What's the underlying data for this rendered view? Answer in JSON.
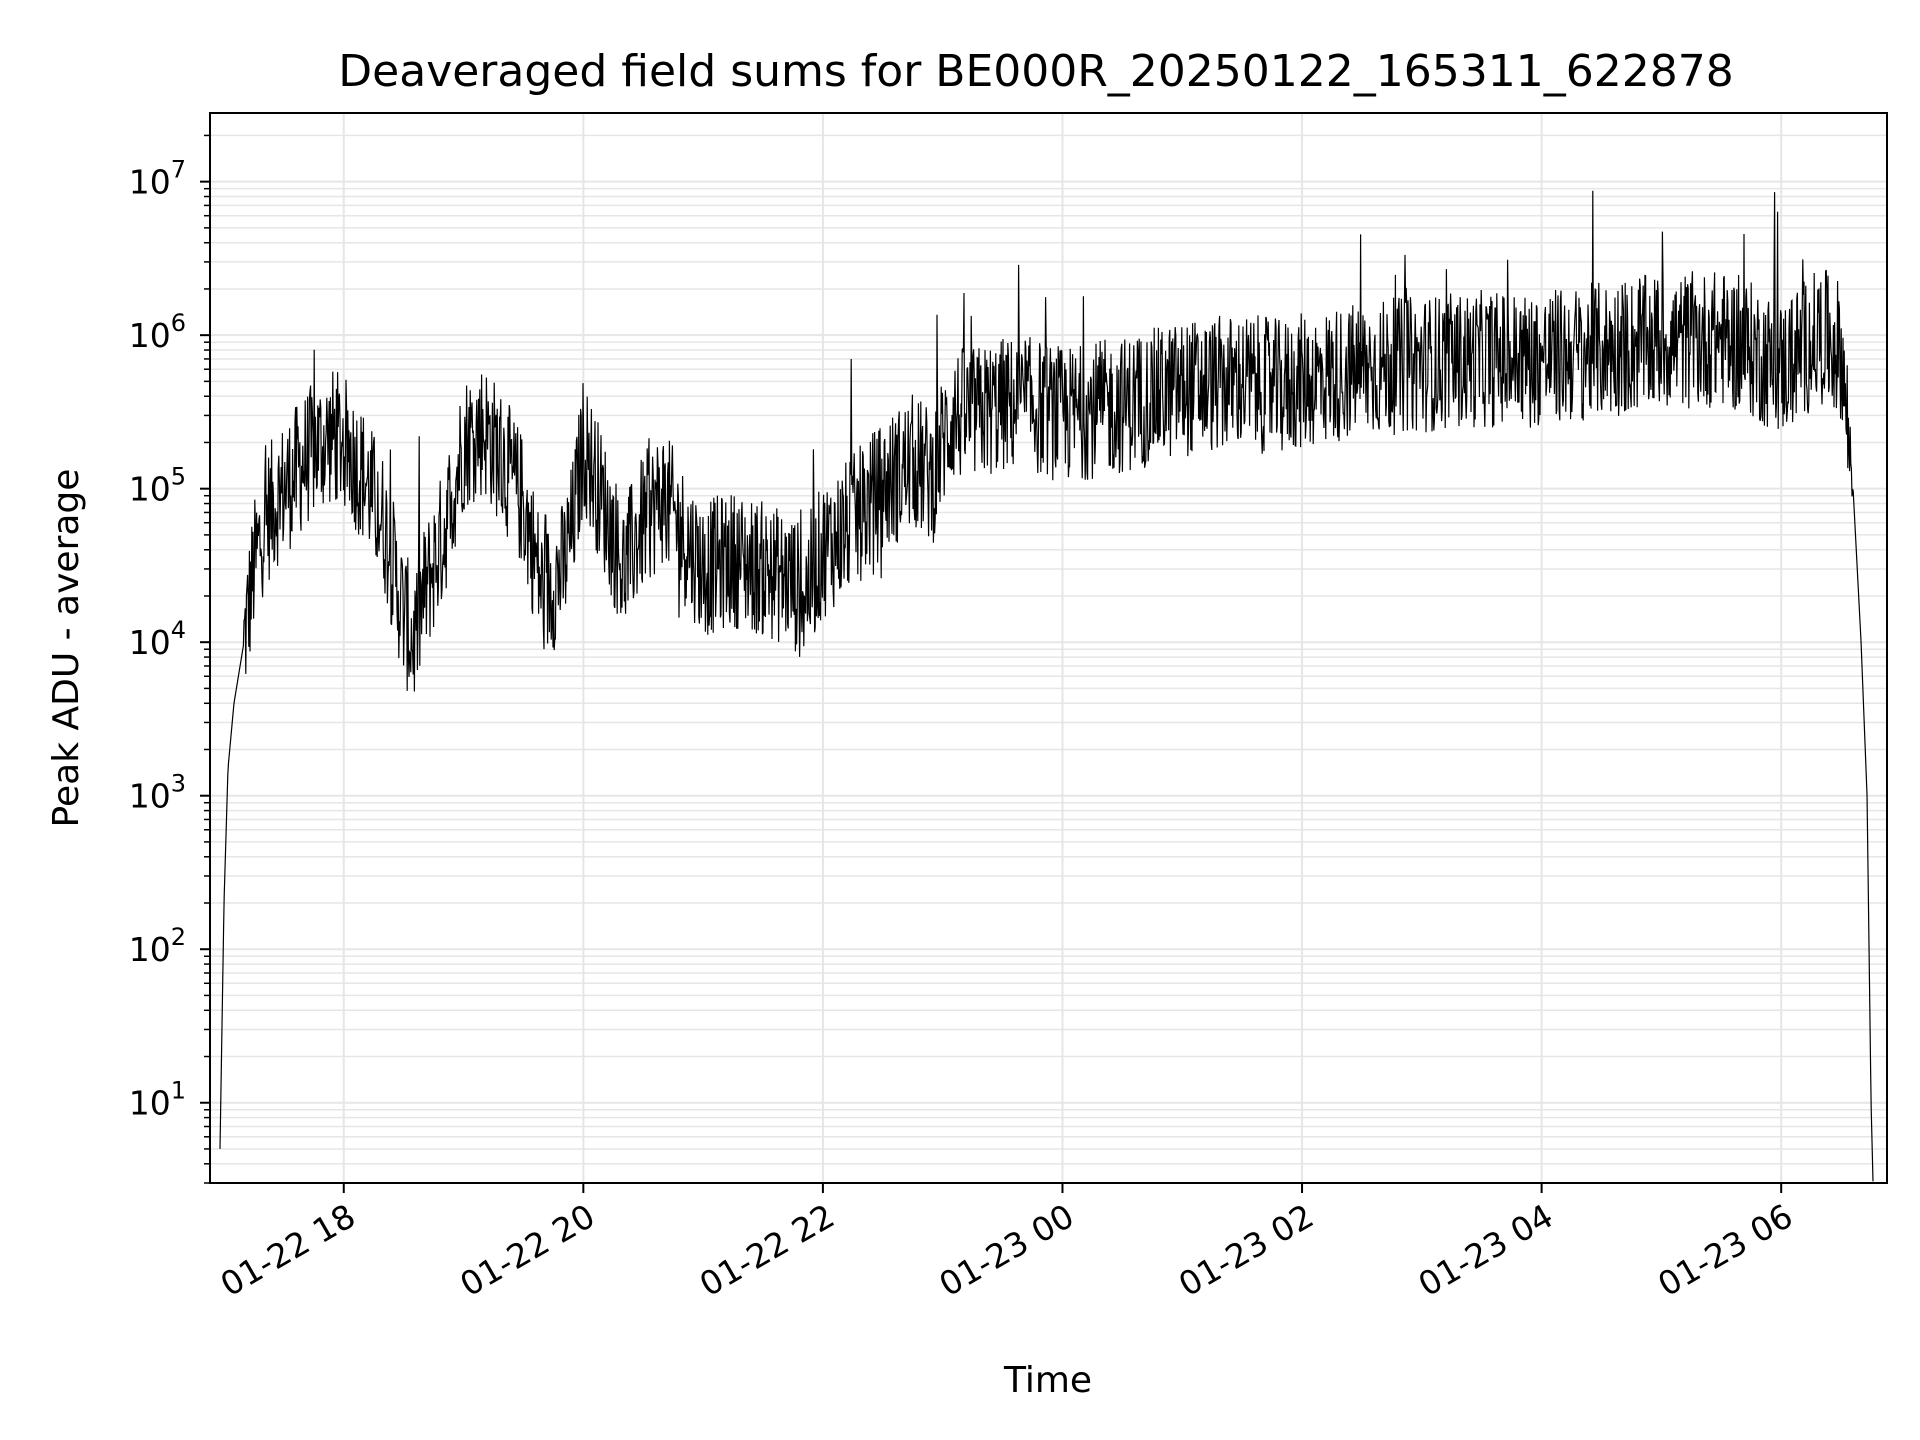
{
  "chart_data": {
    "type": "line",
    "title": "Deaveraged field sums for BE000R_20250122_165311_622878",
    "xlabel": "Time",
    "ylabel": "Peak ADU - average",
    "yscale": "log",
    "ylim": [
      3,
      28000000
    ],
    "xlim": [
      "2025-01-22 16:53",
      "2025-01-23 06:53"
    ],
    "grid": true,
    "line_color": "#000000",
    "grid_color": "#e6e6e6",
    "x_ticks": [
      {
        "t": "2025-01-22 18:00",
        "label": "01-22 18"
      },
      {
        "t": "2025-01-22 20:00",
        "label": "01-22 20"
      },
      {
        "t": "2025-01-22 22:00",
        "label": "01-22 22"
      },
      {
        "t": "2025-01-23 00:00",
        "label": "01-23 00"
      },
      {
        "t": "2025-01-23 02:00",
        "label": "01-23 02"
      },
      {
        "t": "2025-01-23 04:00",
        "label": "01-23 04"
      },
      {
        "t": "2025-01-23 06:00",
        "label": "01-23 06"
      }
    ],
    "y_ticks": [
      {
        "value": 10,
        "base": "10",
        "exp": "1"
      },
      {
        "value": 100,
        "base": "10",
        "exp": "2"
      },
      {
        "value": 1000,
        "base": "10",
        "exp": "3"
      },
      {
        "value": 10000,
        "base": "10",
        "exp": "4"
      },
      {
        "value": 100000,
        "base": "10",
        "exp": "5"
      },
      {
        "value": 1000000,
        "base": "10",
        "exp": "6"
      },
      {
        "value": 10000000,
        "base": "10",
        "exp": "7"
      }
    ],
    "series": [
      {
        "x": [
          "2025-01-22 16:58",
          "2025-01-22 17:00",
          "2025-01-22 17:02",
          "2025-01-22 17:05",
          "2025-01-22 17:10",
          "2025-01-22 17:15",
          "2025-01-22 17:20",
          "2025-01-22 17:25",
          "2025-01-22 17:30",
          "2025-01-22 17:35",
          "2025-01-22 17:40",
          "2025-01-22 17:45",
          "2025-01-22 17:50",
          "2025-01-22 17:55",
          "2025-01-22 18:00",
          "2025-01-22 18:10",
          "2025-01-22 18:20",
          "2025-01-22 18:30",
          "2025-01-22 18:35",
          "2025-01-22 18:40",
          "2025-01-22 18:50",
          "2025-01-22 19:00",
          "2025-01-22 19:10",
          "2025-01-22 19:20",
          "2025-01-22 19:30",
          "2025-01-22 19:40",
          "2025-01-22 19:50",
          "2025-01-22 19:55",
          "2025-01-22 20:00",
          "2025-01-22 20:10",
          "2025-01-22 20:20",
          "2025-01-22 20:30",
          "2025-01-22 20:40",
          "2025-01-22 20:50",
          "2025-01-22 21:00",
          "2025-01-22 21:15",
          "2025-01-22 21:30",
          "2025-01-22 21:45",
          "2025-01-22 21:50",
          "2025-01-22 22:00",
          "2025-01-22 22:15",
          "2025-01-22 22:30",
          "2025-01-22 22:45",
          "2025-01-22 22:55",
          "2025-01-22 23:00",
          "2025-01-22 23:05",
          "2025-01-22 23:15",
          "2025-01-22 23:30",
          "2025-01-22 23:45",
          "2025-01-23 00:00",
          "2025-01-23 00:30",
          "2025-01-23 01:00",
          "2025-01-23 01:30",
          "2025-01-23 01:50",
          "2025-01-23 02:00",
          "2025-01-23 02:30",
          "2025-01-23 03:00",
          "2025-01-23 03:30",
          "2025-01-23 04:00",
          "2025-01-23 04:30",
          "2025-01-23 05:00",
          "2025-01-23 05:30",
          "2025-01-23 05:45",
          "2025-01-23 06:00",
          "2025-01-23 06:10",
          "2025-01-23 06:20",
          "2025-01-23 06:30",
          "2025-01-23 06:36",
          "2025-01-23 06:40",
          "2025-01-23 06:43",
          "2025-01-23 06:45",
          "2025-01-23 06:46"
        ],
        "y": [
          5,
          200,
          1500,
          4000,
          10000,
          30000,
          60000,
          80000,
          100000,
          120000,
          150000,
          180000,
          200000,
          220000,
          200000,
          120000,
          60000,
          15000,
          10000,
          20000,
          50000,
          200000,
          250000,
          150000,
          80000,
          20000,
          30000,
          60000,
          200000,
          80000,
          30000,
          60000,
          90000,
          50000,
          30000,
          35000,
          30000,
          25000,
          20000,
          40000,
          60000,
          100000,
          150000,
          120000,
          200000,
          300000,
          300000,
          350000,
          350000,
          300000,
          350000,
          450000,
          500000,
          450000,
          500000,
          600000,
          650000,
          700000,
          700000,
          800000,
          900000,
          950000,
          800000,
          600000,
          800000,
          1000000,
          800000,
          100000,
          10000,
          1000,
          10,
          3
        ]
      }
    ]
  }
}
